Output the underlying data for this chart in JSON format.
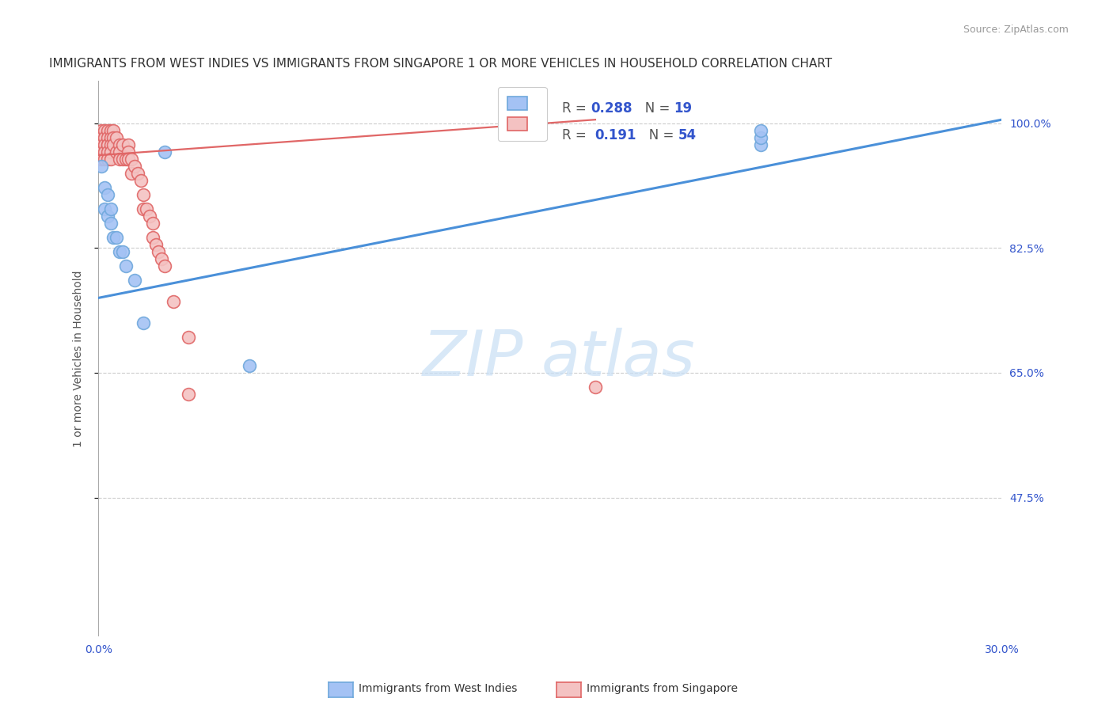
{
  "title": "IMMIGRANTS FROM WEST INDIES VS IMMIGRANTS FROM SINGAPORE 1 OR MORE VEHICLES IN HOUSEHOLD CORRELATION CHART",
  "source": "Source: ZipAtlas.com",
  "ylabel": "1 or more Vehicles in Household",
  "xlim": [
    0.0,
    0.3
  ],
  "ylim": [
    0.28,
    1.06
  ],
  "watermark_zip": "ZIP",
  "watermark_atlas": "atlas",
  "west_indies_x": [
    0.001,
    0.002,
    0.002,
    0.003,
    0.003,
    0.004,
    0.004,
    0.005,
    0.006,
    0.007,
    0.008,
    0.009,
    0.012,
    0.015,
    0.022,
    0.05,
    0.22,
    0.22,
    0.22
  ],
  "west_indies_y": [
    0.94,
    0.91,
    0.88,
    0.9,
    0.87,
    0.88,
    0.86,
    0.84,
    0.84,
    0.82,
    0.82,
    0.8,
    0.78,
    0.72,
    0.96,
    0.66,
    0.97,
    0.98,
    0.99
  ],
  "singapore_x": [
    0.001,
    0.001,
    0.001,
    0.001,
    0.001,
    0.002,
    0.002,
    0.002,
    0.002,
    0.002,
    0.003,
    0.003,
    0.003,
    0.003,
    0.003,
    0.003,
    0.004,
    0.004,
    0.004,
    0.004,
    0.004,
    0.005,
    0.005,
    0.005,
    0.006,
    0.006,
    0.007,
    0.007,
    0.007,
    0.008,
    0.008,
    0.009,
    0.01,
    0.01,
    0.01,
    0.011,
    0.011,
    0.012,
    0.013,
    0.014,
    0.015,
    0.015,
    0.016,
    0.017,
    0.018,
    0.018,
    0.019,
    0.02,
    0.021,
    0.022,
    0.025,
    0.03,
    0.03,
    0.165
  ],
  "singapore_y": [
    0.99,
    0.98,
    0.97,
    0.96,
    0.95,
    0.99,
    0.98,
    0.97,
    0.96,
    0.95,
    0.99,
    0.98,
    0.97,
    0.97,
    0.96,
    0.95,
    0.99,
    0.98,
    0.97,
    0.96,
    0.95,
    0.99,
    0.98,
    0.97,
    0.98,
    0.96,
    0.97,
    0.96,
    0.95,
    0.97,
    0.95,
    0.95,
    0.97,
    0.96,
    0.95,
    0.95,
    0.93,
    0.94,
    0.93,
    0.92,
    0.9,
    0.88,
    0.88,
    0.87,
    0.86,
    0.84,
    0.83,
    0.82,
    0.81,
    0.8,
    0.75,
    0.7,
    0.62,
    0.63
  ],
  "blue_line_x": [
    0.0,
    0.3
  ],
  "blue_line_y": [
    0.755,
    1.005
  ],
  "pink_line_x": [
    0.0,
    0.165
  ],
  "pink_line_y": [
    0.955,
    1.005
  ],
  "scatter_size": 130,
  "blue_scatter_color": "#a4c2f4",
  "blue_scatter_edge": "#6fa8dc",
  "pink_scatter_color": "#f4c2c2",
  "pink_scatter_edge": "#e06666",
  "blue_line_color": "#4a90d9",
  "pink_line_color": "#e06666",
  "background_color": "#ffffff",
  "grid_color": "#cccccc",
  "ytick_vals": [
    0.475,
    0.65,
    0.825,
    1.0
  ],
  "ytick_labels": [
    "47.5%",
    "65.0%",
    "82.5%",
    "100.0%"
  ],
  "xtick_vals": [
    0.0,
    0.05,
    0.1,
    0.15,
    0.2,
    0.25,
    0.3
  ],
  "title_color": "#333333",
  "source_color": "#999999",
  "tick_color": "#3355cc",
  "ylabel_color": "#555555",
  "legend_r1": "R = 0.288",
  "legend_n1": "N = 19",
  "legend_r2": "R =  0.191",
  "legend_n2": "N = 54",
  "legend_r_color": "#333333",
  "legend_n_color": "#3355cc",
  "bottom_label1": "Immigrants from West Indies",
  "bottom_label2": "Immigrants from Singapore"
}
